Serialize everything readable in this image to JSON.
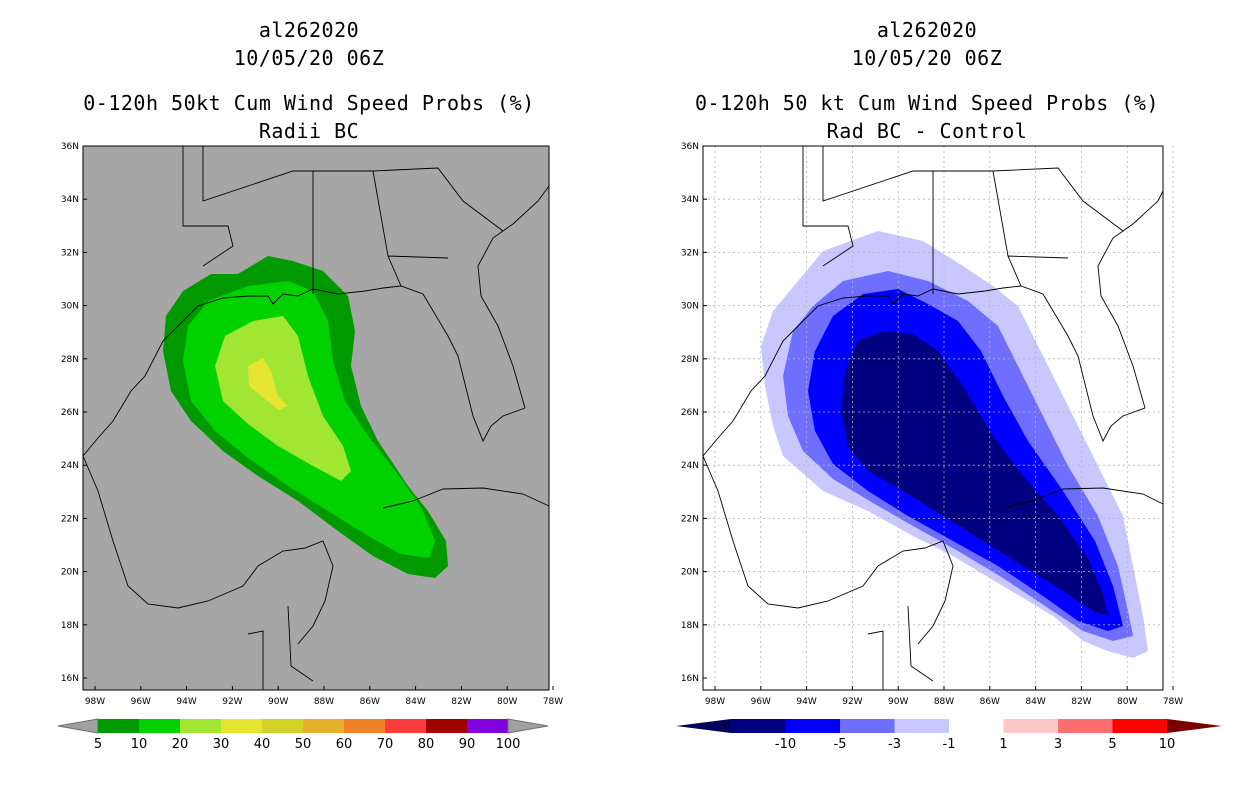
{
  "left_panel": {
    "storm_id": "al262020",
    "init_time": "10/05/20 06Z",
    "product": "0-120h 50kt Cum Wind Speed Probs (%)",
    "subtitle": "Radii BC",
    "colorbar": {
      "colors": [
        "#009a00",
        "#00d200",
        "#a0e632",
        "#e6e632",
        "#d2d228",
        "#e6af2d",
        "#f08228",
        "#fa3c3c",
        "#a00000",
        "#8200dc"
      ],
      "end_color": "#a0a0a0",
      "labels": [
        "5",
        "10",
        "20",
        "30",
        "40",
        "50",
        "60",
        "70",
        "80",
        "90",
        "100"
      ]
    },
    "contour_colors": [
      "#009a00",
      "#00d200",
      "#a0e632",
      "#e6e632"
    ],
    "background": "#a6a6a6"
  },
  "right_panel": {
    "storm_id": "al262020",
    "init_time": "10/05/20 06Z",
    "product": "0-120h 50 kt Cum Wind Speed Probs (%)",
    "subtitle": "Rad BC - Control",
    "colorbar": {
      "colors": [
        "#000080",
        "#0000ff",
        "#6e6eff",
        "#c8c8ff",
        "#ffffff",
        "#ffc8c8",
        "#ff6e6e",
        "#ff0000"
      ],
      "left_end_color": "#00005a",
      "right_end_color": "#780000",
      "labels": [
        "-10",
        "-5",
        "-3",
        "-1",
        "1",
        "3",
        "5",
        "10"
      ]
    },
    "contour_colors": [
      "#c8c8ff",
      "#6e6eff",
      "#0000ff",
      "#000080"
    ],
    "background": "#ffffff"
  },
  "map_axes": {
    "lat_labels": [
      "36N",
      "34N",
      "32N",
      "30N",
      "28N",
      "26N",
      "24N",
      "22N",
      "20N",
      "18N",
      "16N"
    ],
    "lon_labels": [
      "98W",
      "96W",
      "94W",
      "92W",
      "90W",
      "88W",
      "86W",
      "84W",
      "82W",
      "80W",
      "78W"
    ]
  }
}
